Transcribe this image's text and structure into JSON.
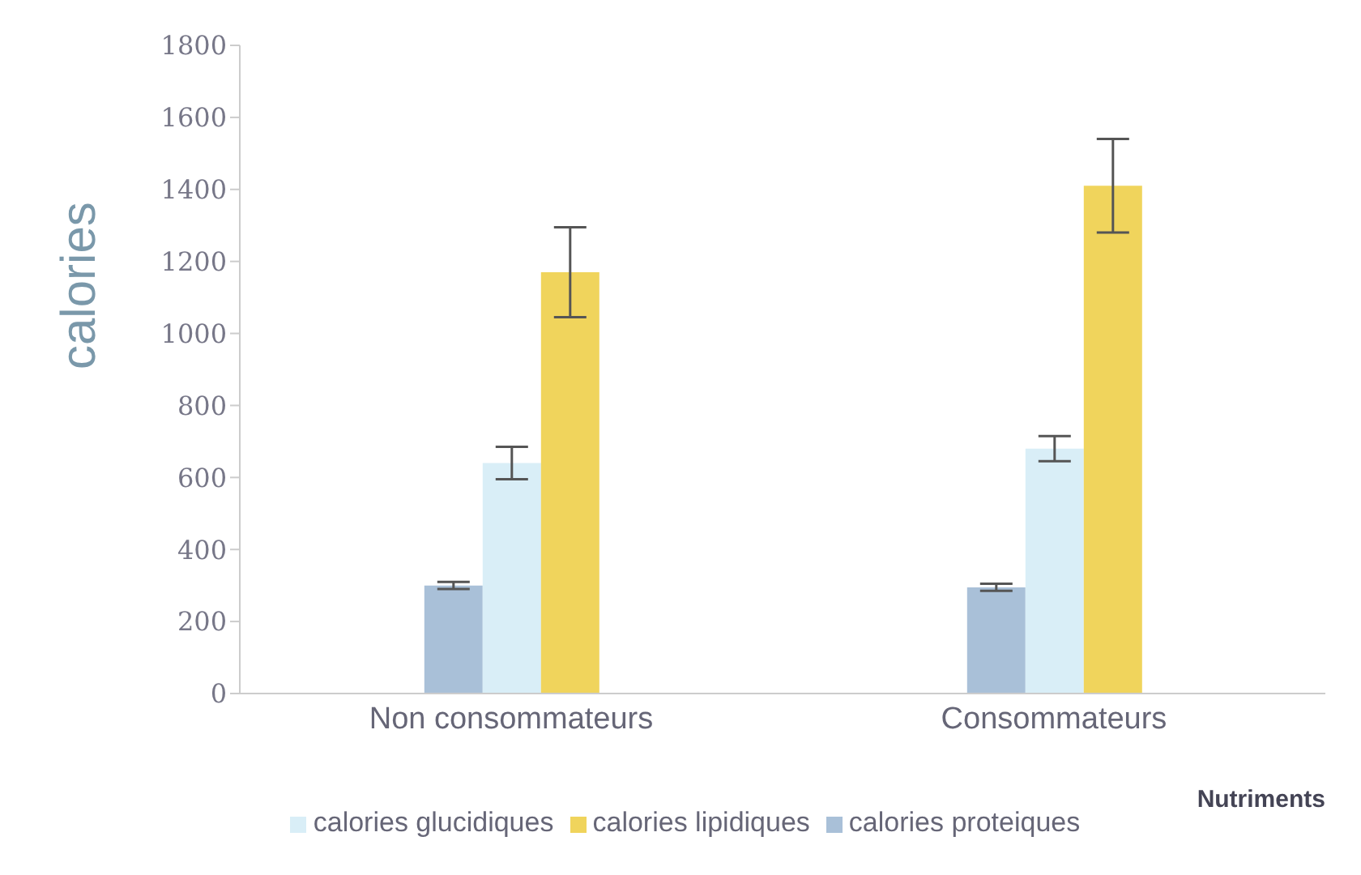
{
  "chart_data": {
    "type": "bar",
    "xlabel": "Nutriments",
    "ylabel": "calories",
    "categories": [
      "Non consommateurs",
      "Consommateurs"
    ],
    "series": [
      {
        "name": "calories proteiques",
        "color": "#a9c0d8",
        "values": [
          300,
          295
        ],
        "errors": [
          10,
          10
        ]
      },
      {
        "name": "calories glucidiques",
        "color": "#d9eef7",
        "values": [
          640,
          680
        ],
        "errors": [
          45,
          35
        ]
      },
      {
        "name": "calories lipidiques",
        "color": "#f0d45c",
        "values": [
          1170,
          1410
        ],
        "errors": [
          125,
          130
        ]
      }
    ],
    "ylim": [
      0,
      1800
    ],
    "yticks": [
      0,
      200,
      400,
      600,
      800,
      1000,
      1200,
      1400,
      1600,
      1800
    ],
    "grid": false,
    "legend": "bottom"
  }
}
